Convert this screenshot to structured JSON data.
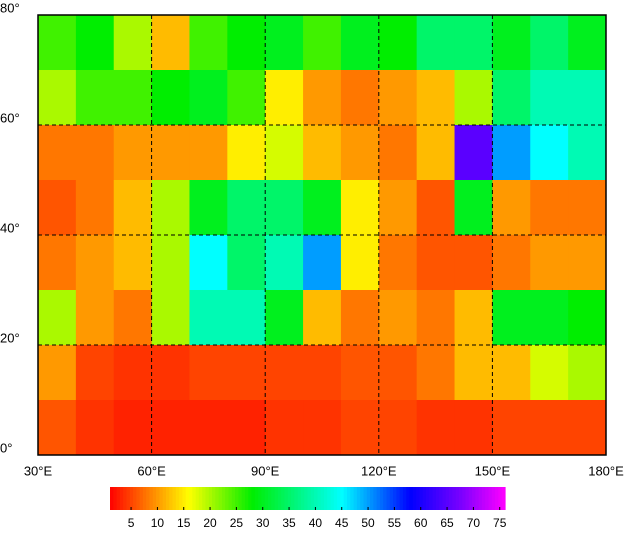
{
  "chart_data": {
    "type": "heatmap",
    "x_bins": [
      30,
      40,
      50,
      60,
      70,
      80,
      90,
      100,
      110,
      120,
      130,
      140,
      150,
      160,
      170,
      180
    ],
    "y_bins": [
      80,
      70,
      60,
      50,
      40,
      30,
      20,
      10,
      0
    ],
    "values": [
      [
        25,
        28,
        20,
        12,
        25,
        28,
        30,
        25,
        30,
        28,
        35,
        35,
        30,
        35,
        30
      ],
      [
        20,
        25,
        25,
        28,
        30,
        25,
        15,
        10,
        8,
        10,
        12,
        20,
        35,
        40,
        40
      ],
      [
        8,
        8,
        10,
        10,
        10,
        15,
        18,
        12,
        10,
        8,
        12,
        65,
        50,
        45,
        40
      ],
      [
        6,
        8,
        12,
        20,
        30,
        35,
        35,
        30,
        15,
        10,
        6,
        30,
        10,
        8,
        8
      ],
      [
        8,
        10,
        12,
        20,
        45,
        35,
        40,
        50,
        15,
        8,
        6,
        6,
        8,
        10,
        10
      ],
      [
        20,
        10,
        8,
        20,
        40,
        40,
        30,
        12,
        8,
        10,
        8,
        12,
        30,
        30,
        28
      ],
      [
        10,
        5,
        4,
        4,
        5,
        5,
        5,
        5,
        6,
        6,
        8,
        12,
        12,
        18,
        20
      ],
      [
        6,
        4,
        3,
        3,
        3,
        3,
        4,
        4,
        5,
        5,
        4,
        4,
        5,
        5,
        5
      ]
    ],
    "xlim": [
      30,
      180
    ],
    "ylim": [
      0,
      80
    ],
    "xticks": [
      {
        "value": 30,
        "label": "30°E"
      },
      {
        "value": 60,
        "label": "60°E"
      },
      {
        "value": 90,
        "label": "90°E"
      },
      {
        "value": 120,
        "label": "120°E"
      },
      {
        "value": 150,
        "label": "150°E"
      },
      {
        "value": 180,
        "label": "180°E"
      }
    ],
    "yticks": [
      {
        "value": 0,
        "label": "0°"
      },
      {
        "value": 20,
        "label": "20°"
      },
      {
        "value": 40,
        "label": "40°"
      },
      {
        "value": 60,
        "label": "60°"
      },
      {
        "value": 80,
        "label": "80°"
      }
    ],
    "grid": true,
    "colorbar_lim": [
      1,
      76
    ],
    "colorbar_ticks": [
      5,
      10,
      15,
      20,
      25,
      30,
      35,
      40,
      45,
      50,
      55,
      60,
      65,
      70,
      75
    ],
    "colorscale": [
      [
        1,
        "#ff0000"
      ],
      [
        10,
        "#ff9900"
      ],
      [
        16,
        "#ffff00"
      ],
      [
        28,
        "#00ee00"
      ],
      [
        45,
        "#00ffff"
      ],
      [
        58,
        "#0000ff"
      ],
      [
        68,
        "#8000ff"
      ],
      [
        76,
        "#ff00ff"
      ]
    ]
  }
}
